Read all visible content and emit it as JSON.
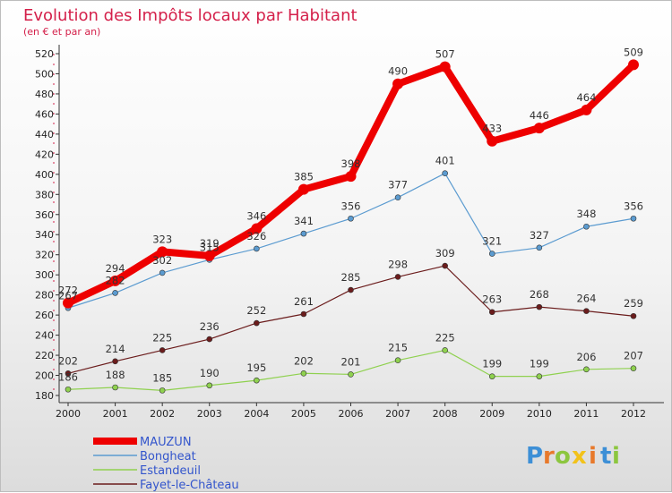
{
  "chart_data": {
    "type": "line",
    "title": "Evolution des Impôts locaux par Habitant",
    "subtitle": "(en € et par an)",
    "x": [
      "2000",
      "2001",
      "2002",
      "2003",
      "2004",
      "2005",
      "2006",
      "2007",
      "2008",
      "2009",
      "2010",
      "2011",
      "2012"
    ],
    "ylim": [
      180,
      520
    ],
    "yticks": [
      180,
      200,
      220,
      240,
      260,
      280,
      300,
      320,
      340,
      360,
      380,
      400,
      420,
      440,
      460,
      480,
      500,
      520
    ],
    "grid": false,
    "legend_position": "bottom-left",
    "series": [
      {
        "name": "MAUZUN",
        "color": "#ee0000",
        "values": [
          272,
          294,
          323,
          319,
          346,
          385,
          398,
          490,
          507,
          433,
          446,
          464,
          509
        ]
      },
      {
        "name": "Bongheat",
        "color": "#5b9bd0",
        "values": [
          267,
          282,
          302,
          315,
          326,
          341,
          356,
          377,
          401,
          321,
          327,
          348,
          356
        ]
      },
      {
        "name": "Estandeuil",
        "color": "#8fd14f",
        "values": [
          186,
          188,
          185,
          190,
          195,
          202,
          201,
          215,
          225,
          199,
          199,
          206,
          207
        ]
      },
      {
        "name": "Fayet-le-Château",
        "color": "#6b1c1c",
        "values": [
          202,
          214,
          225,
          236,
          252,
          261,
          285,
          298,
          309,
          263,
          268,
          264,
          259
        ]
      }
    ]
  },
  "logo": {
    "letters": [
      "P",
      "r",
      "o",
      "x",
      "i",
      "t",
      "i"
    ],
    "colors": [
      "#3d8fd6",
      "#e8792b",
      "#8cc63f",
      "#f2c21b",
      "#e8792b",
      "#3d8fd6",
      "#8cc63f"
    ]
  }
}
